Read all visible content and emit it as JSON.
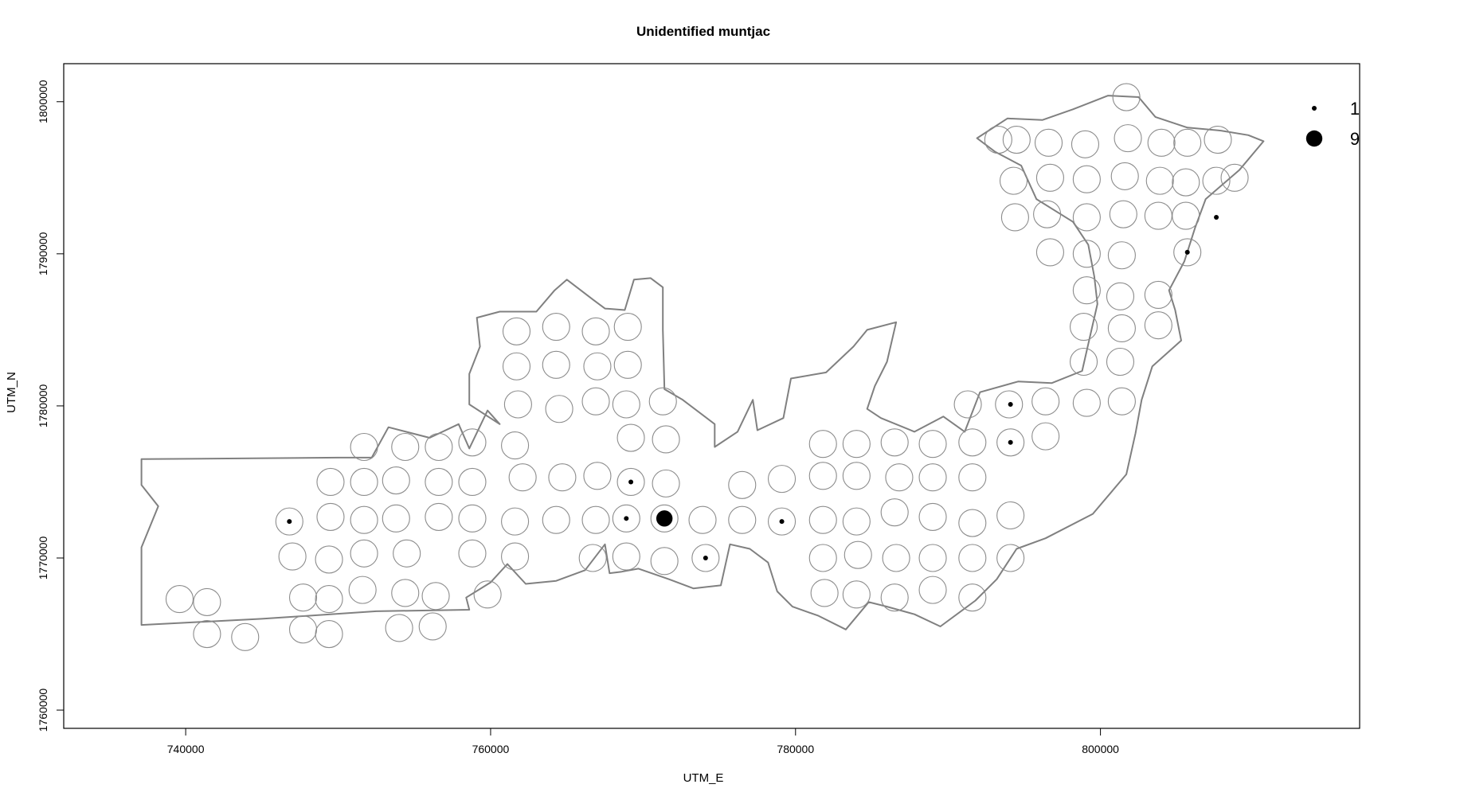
{
  "chart_data": {
    "type": "scatter",
    "title": "Unidentified muntjac",
    "xlabel": "UTM_E",
    "ylabel": "UTM_N",
    "xlim": [
      732000,
      817000
    ],
    "ylim": [
      1758800,
      1802500
    ],
    "x_ticks": [
      740000,
      760000,
      780000,
      800000
    ],
    "x_tick_labels": [
      "740000",
      "760000",
      "780000",
      "800000"
    ],
    "y_ticks": [
      1760000,
      1770000,
      1780000,
      1790000,
      1800000
    ],
    "y_tick_labels": [
      "1760000",
      "1770000",
      "1780000",
      "1790000",
      "1800000"
    ],
    "legend": {
      "position": "top-right",
      "entries": [
        {
          "label": "1",
          "value": 1
        },
        {
          "label": "9",
          "value": 9
        }
      ]
    },
    "colors": {
      "outline": "#808080",
      "station": "#8c8c8c",
      "point": "#000000"
    },
    "stations": [
      [
        739600,
        1767300
      ],
      [
        741400,
        1767100
      ],
      [
        741400,
        1765000
      ],
      [
        743900,
        1764800
      ],
      [
        746800,
        1772400
      ],
      [
        747000,
        1770100
      ],
      [
        747700,
        1767400
      ],
      [
        747700,
        1765300
      ],
      [
        749500,
        1775000
      ],
      [
        749500,
        1772700
      ],
      [
        749400,
        1769900
      ],
      [
        749400,
        1767300
      ],
      [
        749400,
        1765000
      ],
      [
        751700,
        1777300
      ],
      [
        751700,
        1775000
      ],
      [
        751700,
        1772500
      ],
      [
        751700,
        1770300
      ],
      [
        751600,
        1767900
      ],
      [
        753800,
        1775100
      ],
      [
        753800,
        1772600
      ],
      [
        754000,
        1765400
      ],
      [
        754400,
        1777300
      ],
      [
        754500,
        1770300
      ],
      [
        754400,
        1767700
      ],
      [
        756600,
        1777300
      ],
      [
        756600,
        1775000
      ],
      [
        756600,
        1772700
      ],
      [
        756400,
        1767500
      ],
      [
        756200,
        1765500
      ],
      [
        758800,
        1777600
      ],
      [
        758800,
        1775000
      ],
      [
        758800,
        1772600
      ],
      [
        758800,
        1770300
      ],
      [
        759800,
        1767600
      ],
      [
        761700,
        1784900
      ],
      [
        761700,
        1782600
      ],
      [
        761800,
        1780100
      ],
      [
        761600,
        1777400
      ],
      [
        762100,
        1775300
      ],
      [
        761600,
        1772400
      ],
      [
        761600,
        1770100
      ],
      [
        764300,
        1785200
      ],
      [
        764300,
        1782700
      ],
      [
        764500,
        1779800
      ],
      [
        764700,
        1775300
      ],
      [
        764300,
        1772500
      ],
      [
        766900,
        1784900
      ],
      [
        767000,
        1782600
      ],
      [
        766900,
        1780300
      ],
      [
        767000,
        1775400
      ],
      [
        766900,
        1772500
      ],
      [
        766700,
        1770000
      ],
      [
        769000,
        1785200
      ],
      [
        769000,
        1782700
      ],
      [
        768900,
        1780100
      ],
      [
        769200,
        1777900
      ],
      [
        769200,
        1775000
      ],
      [
        768900,
        1772600
      ],
      [
        768900,
        1770100
      ],
      [
        771300,
        1780300
      ],
      [
        771500,
        1777800
      ],
      [
        771500,
        1774900
      ],
      [
        771400,
        1772600
      ],
      [
        771400,
        1769800
      ],
      [
        773900,
        1772500
      ],
      [
        774100,
        1770000
      ],
      [
        776500,
        1774800
      ],
      [
        776500,
        1772500
      ],
      [
        779100,
        1775200
      ],
      [
        779100,
        1772400
      ],
      [
        781800,
        1777500
      ],
      [
        781800,
        1775400
      ],
      [
        781800,
        1772500
      ],
      [
        781800,
        1770000
      ],
      [
        781900,
        1767700
      ],
      [
        784000,
        1777500
      ],
      [
        784000,
        1775400
      ],
      [
        784000,
        1772400
      ],
      [
        784100,
        1770200
      ],
      [
        784000,
        1767600
      ],
      [
        786500,
        1777600
      ],
      [
        786800,
        1775300
      ],
      [
        786500,
        1773000
      ],
      [
        786600,
        1770000
      ],
      [
        786500,
        1767400
      ],
      [
        789000,
        1777500
      ],
      [
        789000,
        1775300
      ],
      [
        789000,
        1772700
      ],
      [
        789000,
        1770000
      ],
      [
        789000,
        1767900
      ],
      [
        791300,
        1780100
      ],
      [
        791600,
        1777600
      ],
      [
        791600,
        1775300
      ],
      [
        791600,
        1772300
      ],
      [
        791600,
        1770000
      ],
      [
        791600,
        1767400
      ],
      [
        794000,
        1780100
      ],
      [
        794100,
        1777600
      ],
      [
        794100,
        1770000
      ],
      [
        794100,
        1772800
      ],
      [
        796400,
        1780300
      ],
      [
        796400,
        1778000
      ],
      [
        798900,
        1785200
      ],
      [
        798900,
        1782900
      ],
      [
        799100,
        1780200
      ],
      [
        801300,
        1787200
      ],
      [
        801400,
        1785100
      ],
      [
        801300,
        1782900
      ],
      [
        801400,
        1780300
      ],
      [
        799100,
        1787600
      ],
      [
        799100,
        1790000
      ],
      [
        799100,
        1792400
      ],
      [
        799100,
        1794900
      ],
      [
        799000,
        1797200
      ],
      [
        801400,
        1789900
      ],
      [
        801500,
        1792600
      ],
      [
        801600,
        1795100
      ],
      [
        801800,
        1797600
      ],
      [
        801700,
        1800300
      ],
      [
        803800,
        1787300
      ],
      [
        803800,
        1785300
      ],
      [
        803800,
        1792500
      ],
      [
        803900,
        1794800
      ],
      [
        804000,
        1797300
      ],
      [
        805700,
        1790100
      ],
      [
        805600,
        1792500
      ],
      [
        805600,
        1794700
      ],
      [
        805700,
        1797300
      ],
      [
        796700,
        1790100
      ],
      [
        796500,
        1792600
      ],
      [
        796700,
        1795000
      ],
      [
        796600,
        1797300
      ],
      [
        794400,
        1792400
      ],
      [
        794300,
        1794800
      ],
      [
        794500,
        1797500
      ],
      [
        793300,
        1797500
      ],
      [
        807600,
        1794800
      ],
      [
        807700,
        1797500
      ],
      [
        808800,
        1795000
      ]
    ],
    "points": [
      {
        "x": 746800,
        "y": 1772400,
        "value": 1
      },
      {
        "x": 769200,
        "y": 1775000,
        "value": 1
      },
      {
        "x": 768900,
        "y": 1772600,
        "value": 1
      },
      {
        "x": 771400,
        "y": 1772600,
        "value": 9
      },
      {
        "x": 774100,
        "y": 1770000,
        "value": 1
      },
      {
        "x": 779100,
        "y": 1772400,
        "value": 1
      },
      {
        "x": 794100,
        "y": 1777600,
        "value": 1
      },
      {
        "x": 794100,
        "y": 1780100,
        "value": 1
      },
      {
        "x": 805700,
        "y": 1790100,
        "value": 1
      },
      {
        "x": 807600,
        "y": 1792400,
        "value": 1
      }
    ],
    "boundary": [
      [
        737100,
        1776500
      ],
      [
        750000,
        1776600
      ],
      [
        752200,
        1776600
      ],
      [
        753300,
        1778600
      ],
      [
        756000,
        1777900
      ],
      [
        757900,
        1778800
      ],
      [
        758600,
        1777200
      ],
      [
        759800,
        1779700
      ],
      [
        760600,
        1778800
      ],
      [
        758600,
        1780100
      ],
      [
        758600,
        1782100
      ],
      [
        759300,
        1783900
      ],
      [
        759100,
        1785800
      ],
      [
        760600,
        1786200
      ],
      [
        763000,
        1786200
      ],
      [
        764200,
        1787600
      ],
      [
        765000,
        1788300
      ],
      [
        766700,
        1787000
      ],
      [
        767500,
        1786400
      ],
      [
        768800,
        1786300
      ],
      [
        769400,
        1788300
      ],
      [
        770500,
        1788400
      ],
      [
        771300,
        1787800
      ],
      [
        771300,
        1785000
      ],
      [
        771400,
        1781100
      ],
      [
        772600,
        1780400
      ],
      [
        774700,
        1778800
      ],
      [
        774700,
        1777300
      ],
      [
        776200,
        1778300
      ],
      [
        777200,
        1780400
      ],
      [
        777500,
        1778400
      ],
      [
        779200,
        1779200
      ],
      [
        779700,
        1781800
      ],
      [
        782000,
        1782200
      ],
      [
        783800,
        1783900
      ],
      [
        784700,
        1785000
      ],
      [
        786600,
        1785500
      ],
      [
        786000,
        1782900
      ],
      [
        785200,
        1781300
      ],
      [
        784700,
        1779800
      ],
      [
        785600,
        1779200
      ],
      [
        787800,
        1778300
      ],
      [
        789700,
        1779300
      ],
      [
        791100,
        1778300
      ],
      [
        792100,
        1780900
      ],
      [
        794600,
        1781600
      ],
      [
        796800,
        1781500
      ],
      [
        798800,
        1782300
      ],
      [
        799300,
        1784500
      ],
      [
        799800,
        1786700
      ],
      [
        799600,
        1788500
      ],
      [
        799200,
        1790600
      ],
      [
        798200,
        1792100
      ],
      [
        795800,
        1793600
      ],
      [
        794800,
        1795800
      ],
      [
        793100,
        1796700
      ],
      [
        791900,
        1797600
      ],
      [
        793900,
        1798900
      ],
      [
        796200,
        1798800
      ],
      [
        798200,
        1799500
      ],
      [
        800500,
        1800400
      ],
      [
        802500,
        1800300
      ],
      [
        803600,
        1799000
      ],
      [
        805700,
        1798300
      ],
      [
        807900,
        1798100
      ],
      [
        809700,
        1797800
      ],
      [
        810700,
        1797400
      ],
      [
        809100,
        1795500
      ],
      [
        806900,
        1793600
      ],
      [
        806200,
        1791700
      ],
      [
        805500,
        1789500
      ],
      [
        804500,
        1787600
      ],
      [
        804900,
        1786300
      ],
      [
        805300,
        1784300
      ],
      [
        803400,
        1782600
      ],
      [
        802700,
        1780400
      ],
      [
        802300,
        1778200
      ],
      [
        801700,
        1775500
      ],
      [
        799500,
        1772900
      ],
      [
        796400,
        1771300
      ],
      [
        794500,
        1770600
      ],
      [
        793200,
        1768600
      ],
      [
        791800,
        1767200
      ],
      [
        789500,
        1765500
      ],
      [
        787800,
        1766300
      ],
      [
        786000,
        1766800
      ],
      [
        784800,
        1767100
      ],
      [
        783300,
        1765300
      ],
      [
        781500,
        1766200
      ],
      [
        779800,
        1766800
      ],
      [
        778800,
        1767800
      ],
      [
        778200,
        1769700
      ],
      [
        777000,
        1770600
      ],
      [
        775700,
        1770900
      ],
      [
        775100,
        1768200
      ],
      [
        773300,
        1768000
      ],
      [
        771700,
        1768600
      ],
      [
        769700,
        1769300
      ],
      [
        768600,
        1769100
      ],
      [
        767800,
        1769000
      ],
      [
        767500,
        1770900
      ],
      [
        766200,
        1769200
      ],
      [
        764300,
        1768500
      ],
      [
        762300,
        1768300
      ],
      [
        761100,
        1769600
      ],
      [
        760000,
        1768400
      ],
      [
        758400,
        1767400
      ],
      [
        758600,
        1766600
      ],
      [
        752500,
        1766500
      ],
      [
        745000,
        1766000
      ],
      [
        737100,
        1765600
      ],
      [
        737100,
        1770700
      ],
      [
        738200,
        1773400
      ],
      [
        737100,
        1774800
      ]
    ]
  }
}
